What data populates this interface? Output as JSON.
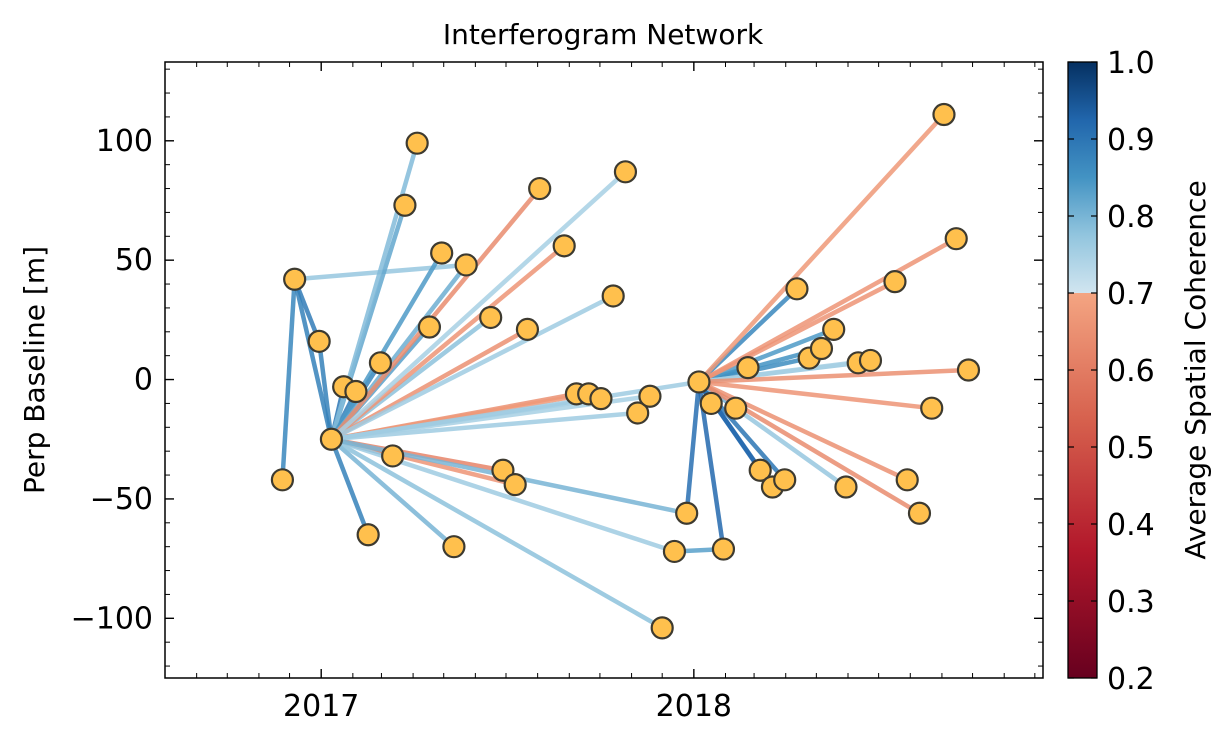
{
  "chart_data": {
    "type": "scatter",
    "title": "Interferogram Network",
    "xlabel": "",
    "ylabel": "Perp Baseline [m]",
    "x_ticks": [
      "2017",
      "2018"
    ],
    "y_ticks": [
      100,
      50,
      0,
      -50,
      -100
    ],
    "ylim": [
      -125,
      133
    ],
    "xlim": [
      "2016-08-01",
      "2018-12-09"
    ],
    "colorbar": {
      "label": "Average Spatial Coherence",
      "range": [
        0.2,
        1.0
      ],
      "ticks": [
        "1.0",
        "0.9",
        "0.8",
        "0.7",
        "0.6",
        "0.5",
        "0.4",
        "0.3",
        "0.2"
      ],
      "threshold": 0.7,
      "colors_low": [
        "#67001f",
        "#b2182b",
        "#d6604d",
        "#f4a582"
      ],
      "colors_high": [
        "#d1e5f0",
        "#92c5de",
        "#4393c3",
        "#2166ac",
        "#053061"
      ]
    },
    "point_style": {
      "fill": "#ffc04d",
      "stroke": "#3d3a30"
    },
    "points": [
      {
        "id": "a",
        "date": "2016-11-24",
        "y": -42
      },
      {
        "id": "b",
        "date": "2016-12-06",
        "y": 42
      },
      {
        "id": "c",
        "date": "2016-12-30",
        "y": 16
      },
      {
        "id": "d",
        "date": "2017-01-11",
        "y": -25
      },
      {
        "id": "e",
        "date": "2017-01-23",
        "y": -3
      },
      {
        "id": "f",
        "date": "2017-02-04",
        "y": -5
      },
      {
        "id": "g",
        "date": "2017-02-16",
        "y": -65
      },
      {
        "id": "h",
        "date": "2017-02-28",
        "y": 7
      },
      {
        "id": "i",
        "date": "2017-03-12",
        "y": -32
      },
      {
        "id": "j",
        "date": "2017-03-24",
        "y": 73
      },
      {
        "id": "k",
        "date": "2017-04-05",
        "y": 99
      },
      {
        "id": "l",
        "date": "2017-04-17",
        "y": 22
      },
      {
        "id": "m",
        "date": "2017-04-29",
        "y": 53
      },
      {
        "id": "n",
        "date": "2017-05-11",
        "y": -70
      },
      {
        "id": "o",
        "date": "2017-05-23",
        "y": 48
      },
      {
        "id": "p",
        "date": "2017-06-16",
        "y": 26
      },
      {
        "id": "q",
        "date": "2017-06-28",
        "y": -38
      },
      {
        "id": "r",
        "date": "2017-07-10",
        "y": -44
      },
      {
        "id": "s",
        "date": "2017-07-22",
        "y": 21
      },
      {
        "id": "t",
        "date": "2017-08-03",
        "y": 80
      },
      {
        "id": "u",
        "date": "2017-08-27",
        "y": 56
      },
      {
        "id": "v",
        "date": "2017-09-08",
        "y": -6
      },
      {
        "id": "w",
        "date": "2017-09-20",
        "y": -6
      },
      {
        "id": "x",
        "date": "2017-10-02",
        "y": -8
      },
      {
        "id": "y",
        "date": "2017-10-14",
        "y": 35
      },
      {
        "id": "z",
        "date": "2017-10-26",
        "y": 87
      },
      {
        "id": "aa",
        "date": "2017-11-07",
        "y": -14
      },
      {
        "id": "ab",
        "date": "2017-11-19",
        "y": -7
      },
      {
        "id": "ac",
        "date": "2017-12-01",
        "y": -104
      },
      {
        "id": "ad",
        "date": "2017-12-13",
        "y": -72
      },
      {
        "id": "ae",
        "date": "2017-12-25",
        "y": -56
      },
      {
        "id": "af",
        "date": "2018-01-06",
        "y": -1
      },
      {
        "id": "ag",
        "date": "2018-01-18",
        "y": -10
      },
      {
        "id": "ah",
        "date": "2018-01-30",
        "y": -71
      },
      {
        "id": "ai",
        "date": "2018-02-11",
        "y": -12
      },
      {
        "id": "aj",
        "date": "2018-02-23",
        "y": 5
      },
      {
        "id": "ak",
        "date": "2018-03-07",
        "y": -38
      },
      {
        "id": "al",
        "date": "2018-03-19",
        "y": -45
      },
      {
        "id": "am",
        "date": "2018-03-31",
        "y": -42
      },
      {
        "id": "an",
        "date": "2018-04-12",
        "y": 38
      },
      {
        "id": "ao",
        "date": "2018-04-24",
        "y": 9
      },
      {
        "id": "ap",
        "date": "2018-05-06",
        "y": 13
      },
      {
        "id": "aq",
        "date": "2018-05-18",
        "y": 21
      },
      {
        "id": "ar",
        "date": "2018-05-30",
        "y": -45
      },
      {
        "id": "as",
        "date": "2018-06-11",
        "y": 7
      },
      {
        "id": "at",
        "date": "2018-06-23",
        "y": 8
      },
      {
        "id": "au",
        "date": "2018-07-17",
        "y": 41
      },
      {
        "id": "av",
        "date": "2018-07-29",
        "y": -42
      },
      {
        "id": "aw",
        "date": "2018-08-10",
        "y": -56
      },
      {
        "id": "ax",
        "date": "2018-08-22",
        "y": -12
      },
      {
        "id": "ay",
        "date": "2018-09-03",
        "y": 111
      },
      {
        "id": "az",
        "date": "2018-09-15",
        "y": 59
      },
      {
        "id": "ba",
        "date": "2018-09-27",
        "y": 4
      }
    ],
    "pairs": [
      [
        "a",
        "b",
        0.87
      ],
      [
        "b",
        "c",
        0.89
      ],
      [
        "c",
        "d",
        0.88
      ],
      [
        "b",
        "d",
        0.88
      ],
      [
        "b",
        "o",
        0.77
      ],
      [
        "d",
        "e",
        0.9
      ],
      [
        "d",
        "f",
        0.89
      ],
      [
        "d",
        "g",
        0.88
      ],
      [
        "d",
        "h",
        0.87
      ],
      [
        "d",
        "i",
        0.87
      ],
      [
        "d",
        "j",
        0.82
      ],
      [
        "d",
        "k",
        0.79
      ],
      [
        "d",
        "l",
        0.83
      ],
      [
        "d",
        "m",
        0.84
      ],
      [
        "d",
        "n",
        0.8
      ],
      [
        "d",
        "o",
        0.81
      ],
      [
        "d",
        "p",
        0.78
      ],
      [
        "d",
        "q",
        0.62
      ],
      [
        "d",
        "r",
        0.66
      ],
      [
        "d",
        "s",
        0.65
      ],
      [
        "d",
        "t",
        0.64
      ],
      [
        "d",
        "u",
        0.66
      ],
      [
        "d",
        "v",
        0.65
      ],
      [
        "d",
        "w",
        0.67
      ],
      [
        "d",
        "x",
        0.75
      ],
      [
        "d",
        "y",
        0.76
      ],
      [
        "d",
        "z",
        0.75
      ],
      [
        "d",
        "aa",
        0.76
      ],
      [
        "d",
        "ab",
        0.75
      ],
      [
        "d",
        "ac",
        0.78
      ],
      [
        "d",
        "ad",
        0.76
      ],
      [
        "d",
        "ae",
        0.8
      ],
      [
        "d",
        "af",
        0.76
      ],
      [
        "ad",
        "ah",
        0.83
      ],
      [
        "af",
        "ae",
        0.91
      ],
      [
        "af",
        "ag",
        0.93
      ],
      [
        "af",
        "ah",
        0.92
      ],
      [
        "af",
        "ai",
        0.91
      ],
      [
        "af",
        "aj",
        0.85
      ],
      [
        "af",
        "ak",
        0.92
      ],
      [
        "af",
        "al",
        0.92
      ],
      [
        "af",
        "am",
        0.9
      ],
      [
        "af",
        "an",
        0.87
      ],
      [
        "af",
        "ao",
        0.86
      ],
      [
        "af",
        "ap",
        0.85
      ],
      [
        "af",
        "aq",
        0.84
      ],
      [
        "af",
        "ar",
        0.77
      ],
      [
        "af",
        "as",
        0.77
      ],
      [
        "af",
        "at",
        0.75
      ],
      [
        "af",
        "au",
        0.66
      ],
      [
        "af",
        "av",
        0.65
      ],
      [
        "af",
        "aw",
        0.64
      ],
      [
        "af",
        "ax",
        0.66
      ],
      [
        "af",
        "ay",
        0.67
      ],
      [
        "af",
        "az",
        0.66
      ],
      [
        "af",
        "ba",
        0.65
      ]
    ]
  }
}
